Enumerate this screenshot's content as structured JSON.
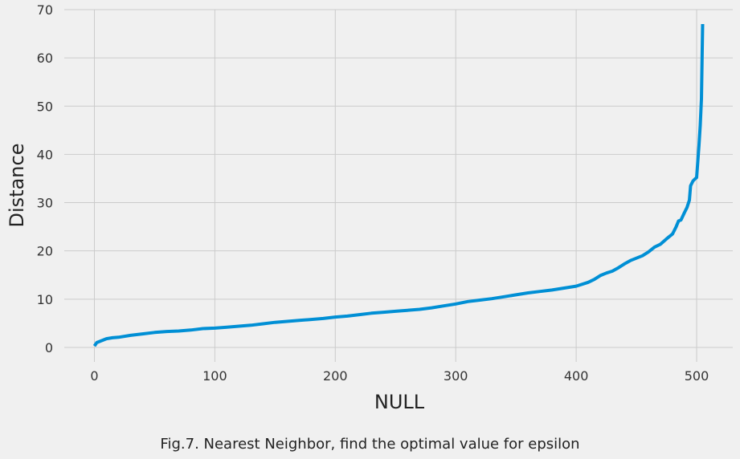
{
  "chart_data": {
    "type": "line",
    "xlabel": "NULL",
    "ylabel": "Distance",
    "xlim": [
      -25,
      530
    ],
    "ylim": [
      -3,
      70
    ],
    "xticks": [
      0,
      100,
      200,
      300,
      400,
      500
    ],
    "yticks": [
      0,
      10,
      20,
      30,
      40,
      50,
      60,
      70
    ],
    "grid": true,
    "series": [
      {
        "color": "#008fd5",
        "x": [
          0,
          2,
          5,
          10,
          15,
          20,
          30,
          40,
          50,
          60,
          70,
          80,
          90,
          100,
          110,
          120,
          130,
          140,
          150,
          160,
          170,
          180,
          190,
          200,
          210,
          220,
          230,
          240,
          250,
          260,
          270,
          280,
          290,
          300,
          310,
          320,
          330,
          340,
          350,
          360,
          370,
          380,
          390,
          400,
          410,
          415,
          420,
          425,
          430,
          435,
          440,
          445,
          450,
          455,
          460,
          465,
          470,
          475,
          480,
          483,
          485,
          487,
          490,
          492,
          494,
          495,
          497,
          499,
          500,
          502,
          503,
          504,
          505
        ],
        "y": [
          0.3,
          1.0,
          1.3,
          1.8,
          2.0,
          2.1,
          2.5,
          2.8,
          3.1,
          3.3,
          3.4,
          3.6,
          3.9,
          4.0,
          4.2,
          4.4,
          4.6,
          4.9,
          5.2,
          5.4,
          5.6,
          5.8,
          6.0,
          6.3,
          6.5,
          6.8,
          7.1,
          7.3,
          7.5,
          7.7,
          7.9,
          8.2,
          8.6,
          9.0,
          9.5,
          9.8,
          10.1,
          10.5,
          10.9,
          11.3,
          11.6,
          11.9,
          12.3,
          12.7,
          13.5,
          14.1,
          14.9,
          15.4,
          15.8,
          16.5,
          17.3,
          18.0,
          18.5,
          19.0,
          19.8,
          20.8,
          21.4,
          22.5,
          23.5,
          25.0,
          26.2,
          26.4,
          28.0,
          29.0,
          30.5,
          33.5,
          34.5,
          35.0,
          35.2,
          42.0,
          46.0,
          51.5,
          67.0
        ]
      }
    ]
  },
  "caption": "Fig.7. Nearest Neighbor, find the optimal value for epsilon"
}
